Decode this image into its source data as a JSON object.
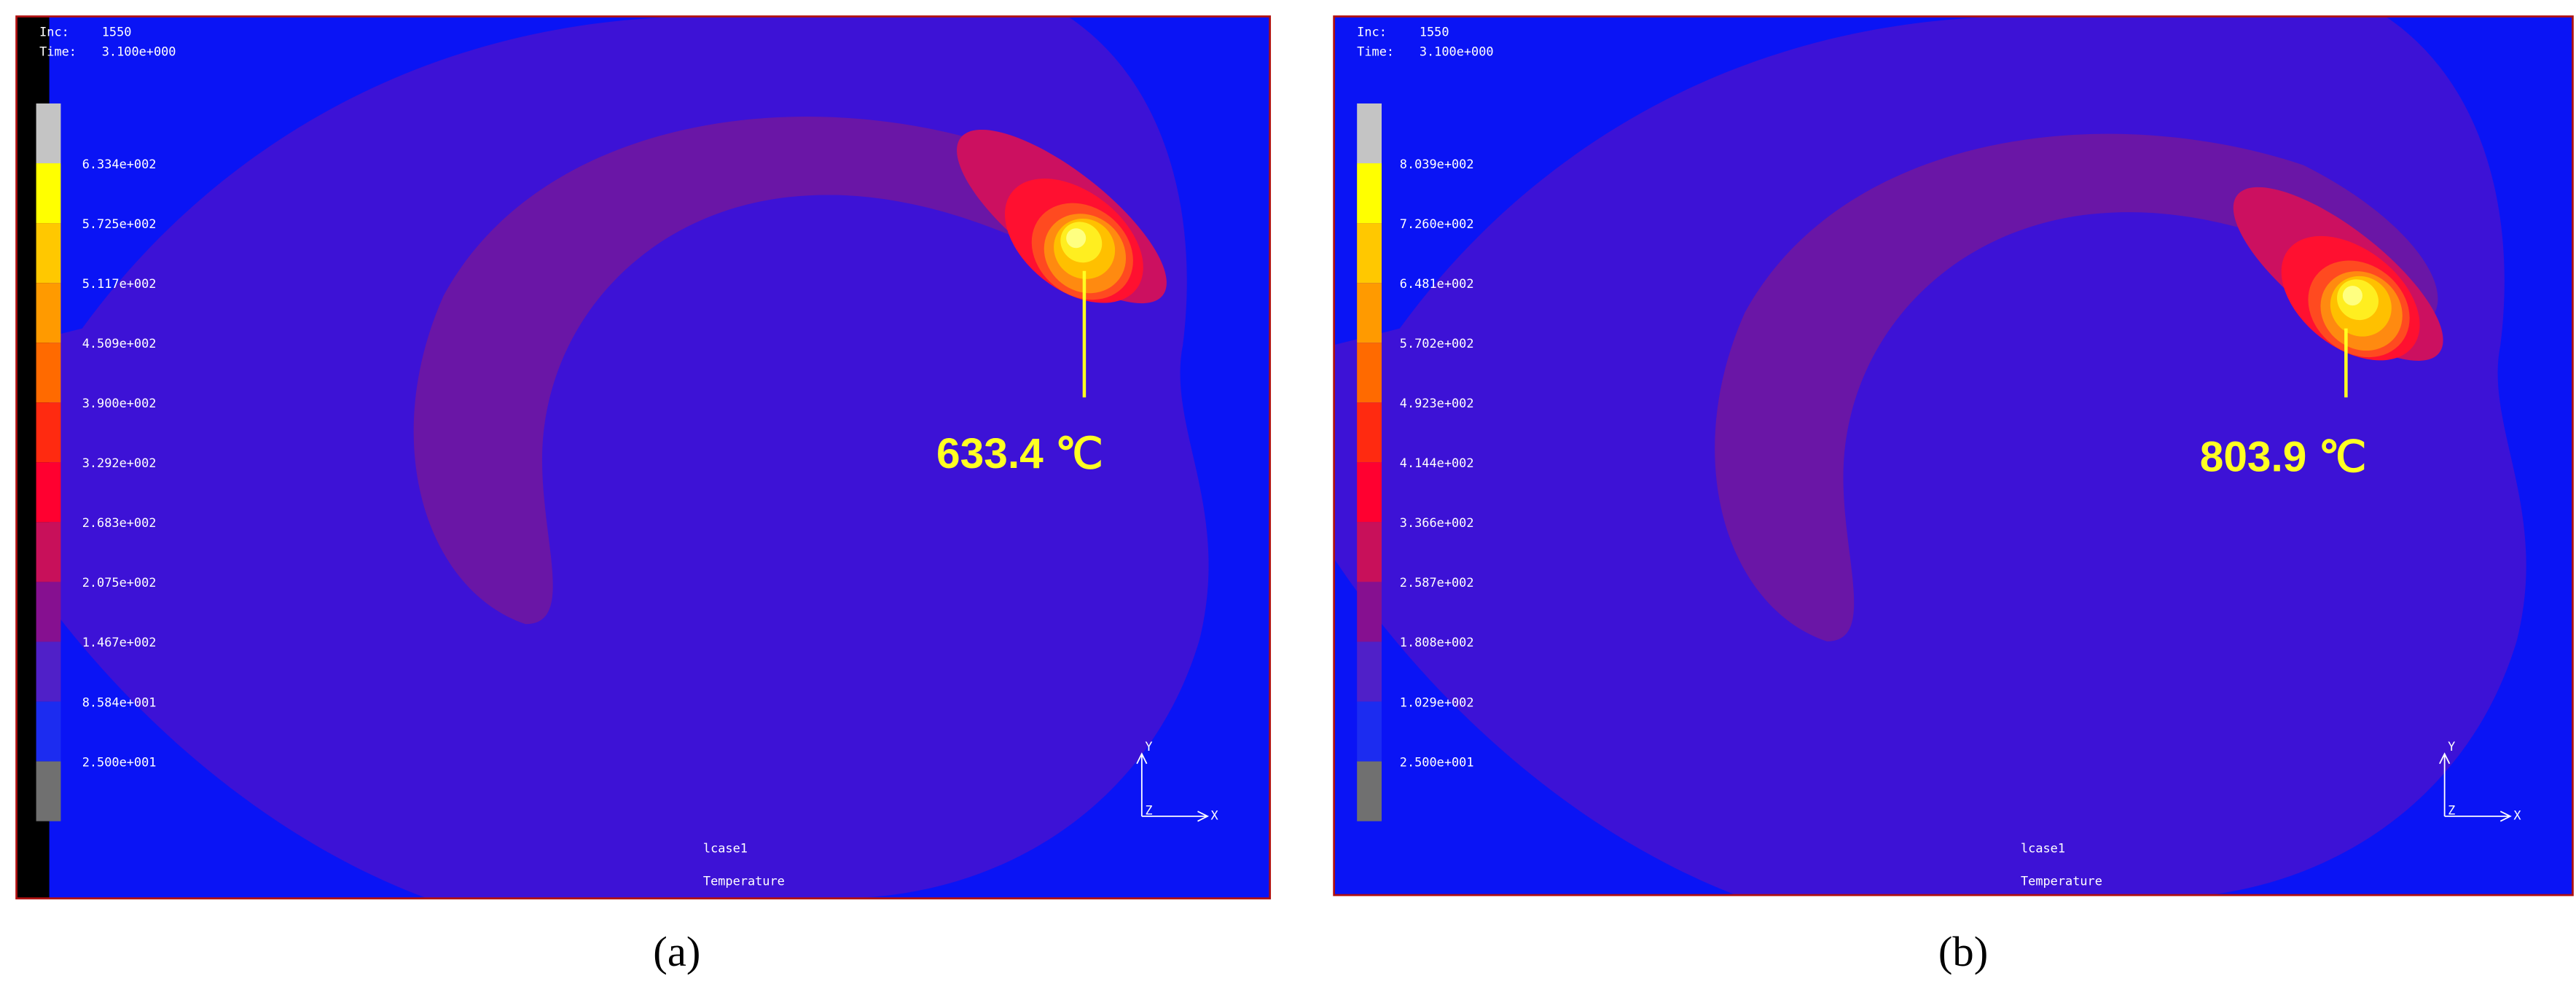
{
  "panels": [
    {
      "inc_label": "Inc:",
      "inc": "1550",
      "time_label": "Time:",
      "time": "3.100e+000",
      "legend_labels": [
        "6.334e+002",
        "5.725e+002",
        "5.117e+002",
        "4.509e+002",
        "3.900e+002",
        "3.292e+002",
        "2.683e+002",
        "2.075e+002",
        "1.467e+002",
        "8.584e+001",
        "2.500e+001"
      ],
      "annotation": "633.4 ℃",
      "load_case": "lcase1",
      "quantity": "Temperature",
      "axes": {
        "y": "Y",
        "z": "Z",
        "x": "X"
      },
      "caption": "(a)"
    },
    {
      "inc_label": "Inc:",
      "inc": "1550",
      "time_label": "Time:",
      "time": "3.100e+000",
      "legend_labels": [
        "8.039e+002",
        "7.260e+002",
        "6.481e+002",
        "5.702e+002",
        "4.923e+002",
        "4.144e+002",
        "3.366e+002",
        "2.587e+002",
        "1.808e+002",
        "1.029e+002",
        "2.500e+001"
      ],
      "annotation": "803.9 ℃",
      "load_case": "lcase1",
      "quantity": "Temperature",
      "axes": {
        "y": "Y",
        "z": "Z",
        "x": "X"
      },
      "caption": "(b)"
    }
  ]
}
